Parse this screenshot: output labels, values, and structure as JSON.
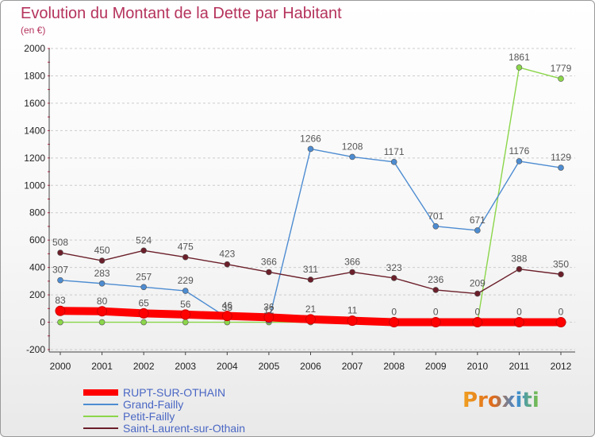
{
  "header": {
    "title": "Evolution du Montant de la Dette par Habitant",
    "subtitle": "(en €)"
  },
  "colors": {
    "title": "#b5335c",
    "legend_text": "#4a67c4",
    "grid": "#cccccc"
  },
  "logo": {
    "text": "Proxiti"
  },
  "chart_data": {
    "type": "line",
    "title": "Evolution du Montant de la Dette par Habitant",
    "subtitle": "(en €)",
    "x": [
      "2000",
      "2001",
      "2002",
      "2003",
      "2004",
      "2005",
      "2006",
      "2007",
      "2008",
      "2009",
      "2010",
      "2011",
      "2012"
    ],
    "ylim": [
      -200,
      2000
    ],
    "yticks": [
      -200,
      0,
      200,
      400,
      600,
      800,
      1000,
      1200,
      1400,
      1600,
      1800,
      2000
    ],
    "grid": "horizontal dashed",
    "legend_position": "bottom-left",
    "series": [
      {
        "name": "RUPT-SUR-OTHAIN",
        "color": "#ff0000",
        "values": [
          83,
          80,
          65,
          56,
          46,
          36,
          21,
          11,
          0,
          0,
          0,
          0,
          0
        ]
      },
      {
        "name": "Grand-Failly",
        "color": "#4d8cd1",
        "values": [
          307,
          283,
          257,
          229,
          33,
          12,
          1266,
          1208,
          1171,
          701,
          671,
          1176,
          1129
        ]
      },
      {
        "name": "Petit-Failly",
        "color": "#8bd64a",
        "values": [
          0,
          0,
          0,
          0,
          0,
          0,
          0,
          0,
          0,
          0,
          0,
          1861,
          1779
        ]
      },
      {
        "name": "Saint-Laurent-sur-Othain",
        "color": "#6b1f2a",
        "values": [
          508,
          450,
          524,
          475,
          423,
          366,
          311,
          366,
          323,
          236,
          209,
          388,
          350
        ]
      }
    ]
  }
}
